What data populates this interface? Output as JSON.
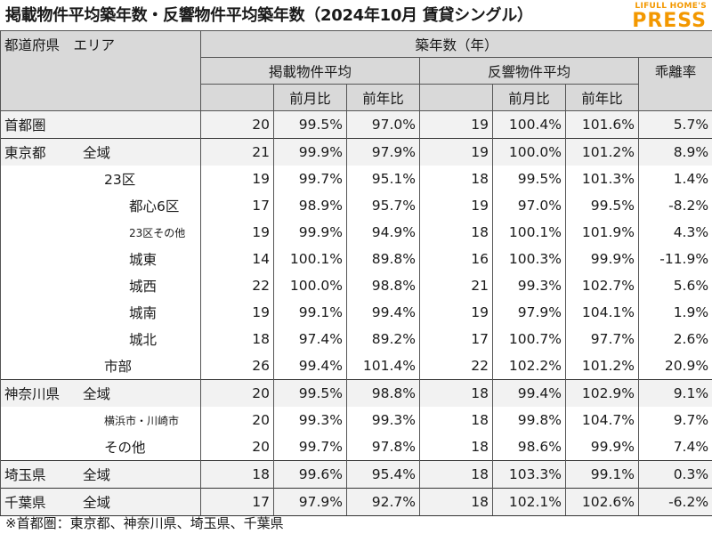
{
  "title": "掲載物件平均築年数・反響物件平均築年数（2024年10月 賃貸シングル）",
  "logo": {
    "top": "LIFULL HOME'S",
    "main": "PRESS"
  },
  "header": {
    "region": "都道府県　エリア",
    "age": "築年数（年）",
    "listed": "掲載物件平均",
    "response": "反響物件平均",
    "gap": "乖離率",
    "mom": "前月比",
    "yoy": "前年比"
  },
  "rows": [
    {
      "pref": "首都圏",
      "area": "",
      "indent": 0,
      "l_age": "20",
      "l_mom": "99.5%",
      "l_yoy": "97.0%",
      "r_age": "19",
      "r_mom": "100.4%",
      "r_yoy": "101.6%",
      "gap": "5.7%",
      "group_start": true,
      "alt": true
    },
    {
      "pref": "東京都",
      "area": "全域",
      "indent": 0,
      "l_age": "21",
      "l_mom": "99.9%",
      "l_yoy": "97.9%",
      "r_age": "19",
      "r_mom": "100.0%",
      "r_yoy": "101.2%",
      "gap": "8.9%",
      "group_start": true,
      "alt": true
    },
    {
      "pref": "",
      "area": "23区",
      "indent": 1,
      "l_age": "19",
      "l_mom": "99.7%",
      "l_yoy": "95.1%",
      "r_age": "18",
      "r_mom": "99.5%",
      "r_yoy": "101.3%",
      "gap": "1.4%"
    },
    {
      "pref": "",
      "area": "都心6区",
      "indent": 2,
      "l_age": "17",
      "l_mom": "98.9%",
      "l_yoy": "95.7%",
      "r_age": "19",
      "r_mom": "97.0%",
      "r_yoy": "99.5%",
      "gap": "-8.2%"
    },
    {
      "pref": "",
      "area": "23区その他",
      "indent": 2,
      "small": true,
      "l_age": "19",
      "l_mom": "99.9%",
      "l_yoy": "94.9%",
      "r_age": "18",
      "r_mom": "100.1%",
      "r_yoy": "101.9%",
      "gap": "4.3%"
    },
    {
      "pref": "",
      "area": "城東",
      "indent": 2,
      "l_age": "14",
      "l_mom": "100.1%",
      "l_yoy": "89.8%",
      "r_age": "16",
      "r_mom": "100.3%",
      "r_yoy": "99.9%",
      "gap": "-11.9%"
    },
    {
      "pref": "",
      "area": "城西",
      "indent": 2,
      "l_age": "22",
      "l_mom": "100.0%",
      "l_yoy": "98.8%",
      "r_age": "21",
      "r_mom": "99.3%",
      "r_yoy": "102.7%",
      "gap": "5.6%"
    },
    {
      "pref": "",
      "area": "城南",
      "indent": 2,
      "l_age": "19",
      "l_mom": "99.1%",
      "l_yoy": "99.4%",
      "r_age": "19",
      "r_mom": "97.9%",
      "r_yoy": "104.1%",
      "gap": "1.9%"
    },
    {
      "pref": "",
      "area": "城北",
      "indent": 2,
      "l_age": "18",
      "l_mom": "97.4%",
      "l_yoy": "89.2%",
      "r_age": "17",
      "r_mom": "100.7%",
      "r_yoy": "97.7%",
      "gap": "2.6%"
    },
    {
      "pref": "",
      "area": "市部",
      "indent": 1,
      "l_age": "26",
      "l_mom": "99.4%",
      "l_yoy": "101.4%",
      "r_age": "22",
      "r_mom": "102.2%",
      "r_yoy": "101.2%",
      "gap": "20.9%"
    },
    {
      "pref": "神奈川県",
      "area": "全域",
      "indent": 0,
      "l_age": "20",
      "l_mom": "99.5%",
      "l_yoy": "98.8%",
      "r_age": "18",
      "r_mom": "99.4%",
      "r_yoy": "102.9%",
      "gap": "9.1%",
      "group_start": true,
      "alt": true
    },
    {
      "pref": "",
      "area": "横浜市・川崎市",
      "indent": 1,
      "small": true,
      "l_age": "20",
      "l_mom": "99.3%",
      "l_yoy": "99.3%",
      "r_age": "18",
      "r_mom": "99.8%",
      "r_yoy": "104.7%",
      "gap": "9.7%"
    },
    {
      "pref": "",
      "area": "その他",
      "indent": 1,
      "l_age": "20",
      "l_mom": "99.7%",
      "l_yoy": "97.8%",
      "r_age": "18",
      "r_mom": "98.6%",
      "r_yoy": "99.9%",
      "gap": "7.4%"
    },
    {
      "pref": "埼玉県",
      "area": "全域",
      "indent": 0,
      "l_age": "18",
      "l_mom": "99.6%",
      "l_yoy": "95.4%",
      "r_age": "18",
      "r_mom": "103.3%",
      "r_yoy": "99.1%",
      "gap": "0.3%",
      "group_start": true,
      "alt": true
    },
    {
      "pref": "千葉県",
      "area": "全域",
      "indent": 0,
      "l_age": "17",
      "l_mom": "97.9%",
      "l_yoy": "92.7%",
      "r_age": "18",
      "r_mom": "102.1%",
      "r_yoy": "102.6%",
      "gap": "-6.2%",
      "group_start": true,
      "alt": true,
      "last": true
    }
  ],
  "note": "※首都圏：東京都、神奈川県、埼玉県、千葉県"
}
